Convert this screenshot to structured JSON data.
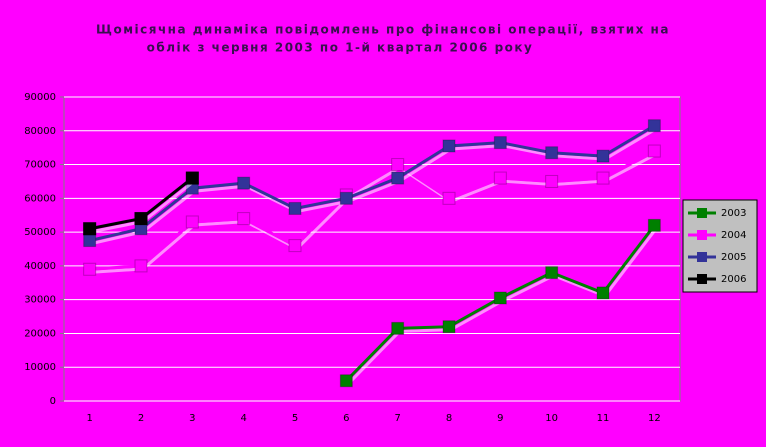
{
  "chart_data": {
    "type": "line",
    "title": [
      "Щомісячна динаміка повідомлень про фінансові операції, взятих на",
      "облік з червня 2003 по  1-й квартал 2006 року"
    ],
    "categories": [
      "1",
      "2",
      "3",
      "4",
      "5",
      "6",
      "7",
      "8",
      "9",
      "10",
      "11",
      "12"
    ],
    "series": [
      {
        "name": "2003",
        "color": "#008000",
        "values": [
          null,
          null,
          null,
          null,
          null,
          6000,
          21500,
          22000,
          30500,
          38000,
          32000,
          52000
        ]
      },
      {
        "name": "2004",
        "color": "#ff00ff",
        "values": [
          39000,
          40000,
          53000,
          54000,
          46000,
          61000,
          70000,
          60000,
          66000,
          65000,
          66000,
          74000
        ]
      },
      {
        "name": "2005",
        "color": "#333399",
        "values": [
          47500,
          51000,
          63000,
          64500,
          57000,
          60000,
          66000,
          75500,
          76500,
          73500,
          72500,
          81500
        ]
      },
      {
        "name": "2006",
        "color": "#000000",
        "values": [
          51000,
          54000,
          66000,
          null,
          null,
          null,
          null,
          null,
          null,
          null,
          null,
          null
        ]
      }
    ],
    "ylim": [
      0,
      90000
    ],
    "yticks": [
      0,
      10000,
      20000,
      30000,
      40000,
      50000,
      60000,
      70000,
      80000,
      90000
    ],
    "grid": true,
    "legend": "right"
  }
}
